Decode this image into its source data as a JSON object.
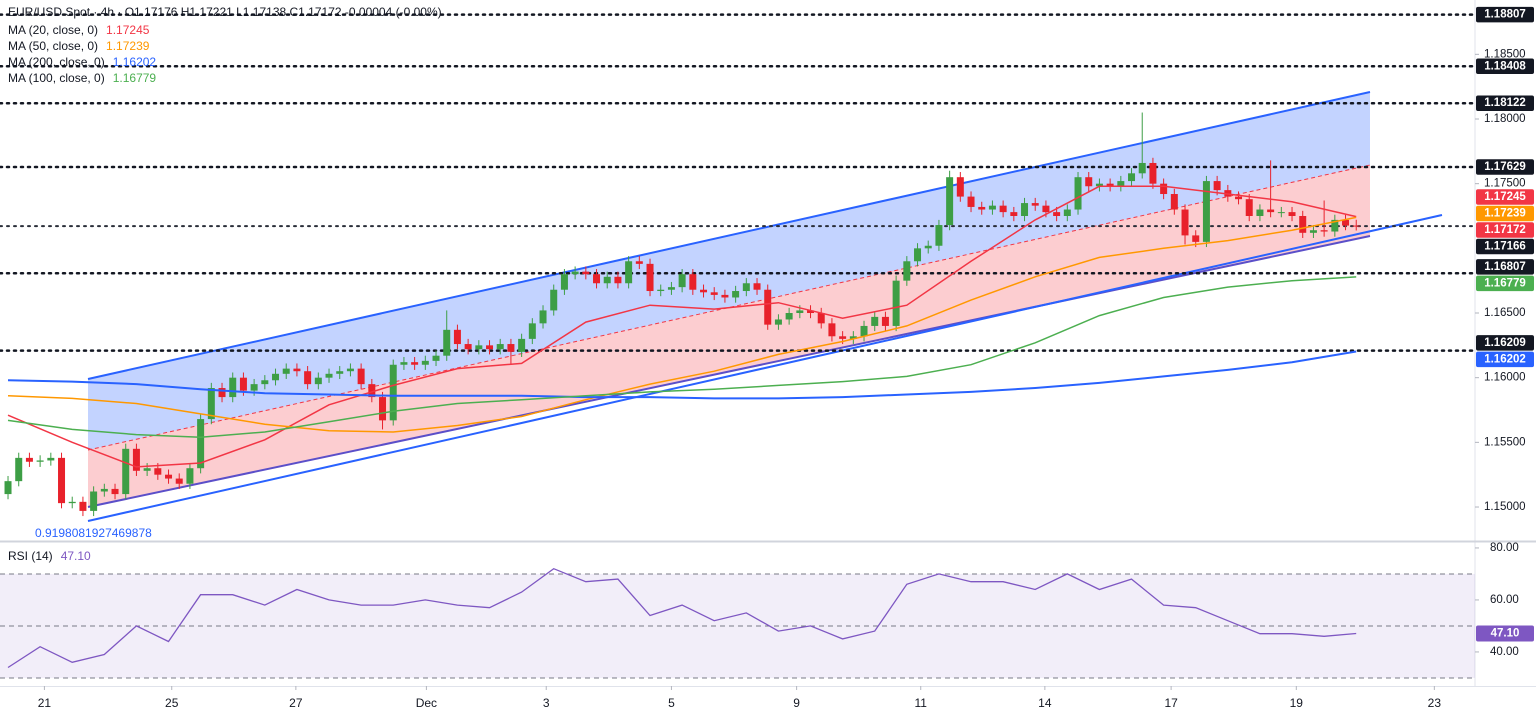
{
  "chart_data": {
    "type": "candlestick",
    "header": "EUR/USD Spot · 4h · O1.17176 H1.17221 L1.17138 C1.17172 -0.00004 (-0.00%)",
    "annotation": "0.9198081927469878",
    "xlim": [
      -0.75,
      137.1
    ],
    "xticks": [
      {
        "value": 3.4,
        "label": "21"
      },
      {
        "value": 15.3,
        "label": "25"
      },
      {
        "value": 26.9,
        "label": "27"
      },
      {
        "value": 39.1,
        "label": "Dec"
      },
      {
        "value": 50.3,
        "label": "3"
      },
      {
        "value": 62.0,
        "label": "5"
      },
      {
        "value": 73.7,
        "label": "9"
      },
      {
        "value": 85.3,
        "label": "11"
      },
      {
        "value": 96.9,
        "label": "14"
      },
      {
        "value": 108.7,
        "label": "17"
      },
      {
        "value": 120.4,
        "label": "19"
      },
      {
        "value": 133.3,
        "label": "23"
      }
    ],
    "ylim": [
      1.14745,
      1.1892
    ],
    "yticks": [
      {
        "value": 1.15,
        "label": "1.15000"
      },
      {
        "value": 1.155,
        "label": "1.15500"
      },
      {
        "value": 1.16,
        "label": "1.16000"
      },
      {
        "value": 1.165,
        "label": "1.16500"
      },
      {
        "value": 1.175,
        "label": "1.17500"
      },
      {
        "value": 1.18,
        "label": "1.18000"
      },
      {
        "value": 1.185,
        "label": "1.18500"
      }
    ],
    "up_color": "#3d9e45",
    "down_color": "#e8212b",
    "candles": {
      "open": [
        1.151,
        1.152,
        1.1538,
        1.1535,
        1.1536,
        1.1538,
        1.1503,
        1.1504,
        1.1497,
        1.1512,
        1.1514,
        1.151,
        1.1545,
        1.1528,
        1.153,
        1.1525,
        1.1522,
        1.1518,
        1.153,
        1.1568,
        1.1592,
        1.1585,
        1.16,
        1.159,
        1.1595,
        1.1598,
        1.1603,
        1.1607,
        1.1605,
        1.1595,
        1.16,
        1.1603,
        1.1605,
        1.1607,
        1.1595,
        1.1585,
        1.1567,
        1.161,
        1.1612,
        1.161,
        1.1613,
        1.1617,
        1.1637,
        1.1626,
        1.1622,
        1.1625,
        1.1622,
        1.1626,
        1.162,
        1.163,
        1.1642,
        1.1652,
        1.1668,
        1.168,
        1.1682,
        1.168,
        1.1673,
        1.1678,
        1.1673,
        1.169,
        1.1688,
        1.1667,
        1.1668,
        1.167,
        1.168,
        1.1668,
        1.1666,
        1.1664,
        1.1662,
        1.1667,
        1.1673,
        1.1668,
        1.1641,
        1.1645,
        1.165,
        1.1652,
        1.165,
        1.1642,
        1.1632,
        1.163,
        1.1632,
        1.164,
        1.1647,
        1.164,
        1.1675,
        1.169,
        1.17,
        1.1702,
        1.1718,
        1.1755,
        1.174,
        1.1732,
        1.173,
        1.1733,
        1.1728,
        1.1725,
        1.1735,
        1.1733,
        1.1728,
        1.1725,
        1.173,
        1.1755,
        1.1748,
        1.175,
        1.1748,
        1.1752,
        1.1758,
        1.1766,
        1.175,
        1.1742,
        1.173,
        1.171,
        1.1705,
        1.1752,
        1.1745,
        1.174,
        1.1738,
        1.1725,
        1.173,
        1.1728,
        1.1728,
        1.1725,
        1.1712,
        1.1714,
        1.1713,
        1.1722,
        1.17176
      ],
      "high": [
        1.1524,
        1.1542,
        1.1542,
        1.154,
        1.1542,
        1.1542,
        1.1508,
        1.1508,
        1.1516,
        1.1518,
        1.1518,
        1.1549,
        1.1549,
        1.1534,
        1.1534,
        1.1529,
        1.1526,
        1.1534,
        1.1572,
        1.1596,
        1.1596,
        1.1604,
        1.1604,
        1.1599,
        1.1602,
        1.1607,
        1.1611,
        1.1611,
        1.1609,
        1.1604,
        1.1607,
        1.1609,
        1.1611,
        1.1611,
        1.1599,
        1.1589,
        1.1614,
        1.1616,
        1.1616,
        1.1617,
        1.1621,
        1.1652,
        1.1641,
        1.163,
        1.1629,
        1.1629,
        1.163,
        1.163,
        1.1634,
        1.1646,
        1.1656,
        1.1672,
        1.1684,
        1.1686,
        1.1686,
        1.1684,
        1.1682,
        1.1682,
        1.1694,
        1.1694,
        1.1692,
        1.1672,
        1.1674,
        1.1684,
        1.1684,
        1.1672,
        1.167,
        1.1668,
        1.1671,
        1.1677,
        1.1677,
        1.1672,
        1.1649,
        1.1654,
        1.1656,
        1.1656,
        1.1654,
        1.1646,
        1.1636,
        1.1636,
        1.1644,
        1.1651,
        1.1651,
        1.1679,
        1.1694,
        1.1704,
        1.1706,
        1.1722,
        1.176,
        1.1759,
        1.1744,
        1.1736,
        1.1737,
        1.1737,
        1.1732,
        1.1739,
        1.1739,
        1.1737,
        1.1732,
        1.1734,
        1.1759,
        1.1759,
        1.1754,
        1.1754,
        1.1756,
        1.1762,
        1.1805,
        1.177,
        1.1754,
        1.1746,
        1.1734,
        1.1714,
        1.1756,
        1.1756,
        1.1749,
        1.1744,
        1.1742,
        1.1734,
        1.1768,
        1.1732,
        1.1732,
        1.1729,
        1.1718,
        1.1737,
        1.1726,
        1.1726,
        1.17221
      ],
      "low": [
        1.1506,
        1.1516,
        1.1531,
        1.1531,
        1.1532,
        1.1499,
        1.1499,
        1.1493,
        1.1493,
        1.1508,
        1.1506,
        1.1506,
        1.1524,
        1.1524,
        1.1521,
        1.1518,
        1.1514,
        1.1514,
        1.1526,
        1.1564,
        1.1581,
        1.1581,
        1.1586,
        1.1586,
        1.1591,
        1.1594,
        1.1599,
        1.1601,
        1.1591,
        1.1591,
        1.1596,
        1.1599,
        1.1601,
        1.1591,
        1.1581,
        1.156,
        1.1563,
        1.1606,
        1.1606,
        1.1606,
        1.1609,
        1.1613,
        1.1622,
        1.1618,
        1.1618,
        1.1618,
        1.1618,
        1.161,
        1.1616,
        1.1626,
        1.1638,
        1.1648,
        1.1664,
        1.1676,
        1.1676,
        1.1669,
        1.1669,
        1.1669,
        1.1669,
        1.1684,
        1.1663,
        1.1663,
        1.1664,
        1.1666,
        1.1664,
        1.1662,
        1.166,
        1.1658,
        1.1658,
        1.1663,
        1.1664,
        1.1637,
        1.1637,
        1.1641,
        1.1646,
        1.1646,
        1.1638,
        1.1628,
        1.1626,
        1.1626,
        1.1628,
        1.1636,
        1.1636,
        1.1636,
        1.1671,
        1.1686,
        1.1696,
        1.1698,
        1.1714,
        1.1736,
        1.1728,
        1.1726,
        1.1726,
        1.1724,
        1.1721,
        1.1721,
        1.1729,
        1.1724,
        1.1721,
        1.1721,
        1.1726,
        1.1744,
        1.1744,
        1.1744,
        1.1744,
        1.1748,
        1.1754,
        1.1746,
        1.1738,
        1.1726,
        1.1703,
        1.1701,
        1.1701,
        1.1741,
        1.1736,
        1.1734,
        1.1721,
        1.1721,
        1.1724,
        1.1724,
        1.1721,
        1.1708,
        1.1708,
        1.1709,
        1.1709,
        1.1714,
        1.17138
      ],
      "close": [
        1.152,
        1.1538,
        1.1535,
        1.1536,
        1.1538,
        1.1503,
        1.1504,
        1.1497,
        1.1512,
        1.1514,
        1.151,
        1.1545,
        1.1528,
        1.153,
        1.1525,
        1.1522,
        1.1518,
        1.153,
        1.1568,
        1.1592,
        1.1585,
        1.16,
        1.159,
        1.1595,
        1.1598,
        1.1603,
        1.1607,
        1.1605,
        1.1595,
        1.16,
        1.1603,
        1.1605,
        1.1607,
        1.1595,
        1.1585,
        1.1567,
        1.161,
        1.1612,
        1.161,
        1.1613,
        1.1617,
        1.1637,
        1.1626,
        1.1622,
        1.1625,
        1.1622,
        1.1626,
        1.162,
        1.163,
        1.1642,
        1.1652,
        1.1668,
        1.168,
        1.1682,
        1.168,
        1.1673,
        1.1678,
        1.1673,
        1.169,
        1.1688,
        1.1667,
        1.1668,
        1.167,
        1.168,
        1.1668,
        1.1666,
        1.1664,
        1.1662,
        1.1667,
        1.1673,
        1.1668,
        1.1641,
        1.1645,
        1.165,
        1.1652,
        1.165,
        1.1642,
        1.1632,
        1.163,
        1.1632,
        1.164,
        1.1647,
        1.164,
        1.1675,
        1.169,
        1.17,
        1.1702,
        1.1718,
        1.1755,
        1.174,
        1.1732,
        1.173,
        1.1733,
        1.1728,
        1.1725,
        1.1735,
        1.1733,
        1.1728,
        1.1725,
        1.173,
        1.1755,
        1.1748,
        1.175,
        1.1748,
        1.1752,
        1.1758,
        1.1766,
        1.175,
        1.1742,
        1.173,
        1.171,
        1.1705,
        1.1752,
        1.1745,
        1.174,
        1.1738,
        1.1725,
        1.173,
        1.1728,
        1.1728,
        1.1725,
        1.1712,
        1.1714,
        1.1713,
        1.1722,
        1.17176,
        1.17172
      ]
    },
    "moving_averages": {
      "x": [
        0,
        6,
        12,
        18,
        24,
        30,
        36,
        42,
        48,
        54,
        60,
        66,
        72,
        78,
        84,
        90,
        96,
        102,
        108,
        114,
        120,
        126
      ],
      "series": [
        {
          "name": "MA (20, close, 0)",
          "color": "#f23645",
          "last": 1.17245,
          "values": [
            1.1571,
            1.155,
            1.1531,
            1.1534,
            1.1552,
            1.1579,
            1.1594,
            1.1607,
            1.1611,
            1.1643,
            1.1656,
            1.1653,
            1.1658,
            1.1646,
            1.1656,
            1.169,
            1.1722,
            1.1748,
            1.1748,
            1.1742,
            1.1736,
            1.17245
          ]
        },
        {
          "name": "MA (50, close, 0)",
          "color": "#ff9800",
          "last": 1.17239,
          "values": [
            1.1586,
            1.1584,
            1.158,
            1.1572,
            1.1564,
            1.1559,
            1.1558,
            1.1563,
            1.157,
            1.1583,
            1.1595,
            1.1605,
            1.1618,
            1.1628,
            1.164,
            1.166,
            1.1678,
            1.1693,
            1.17,
            1.1706,
            1.1714,
            1.17239
          ]
        },
        {
          "name": "MA (200, close, 0)",
          "color": "#2962ff",
          "last": 1.16202,
          "values": [
            1.1598,
            1.1597,
            1.1595,
            1.1591,
            1.1588,
            1.1587,
            1.1586,
            1.1586,
            1.1586,
            1.1585,
            1.1585,
            1.1584,
            1.1584,
            1.1585,
            1.1587,
            1.1589,
            1.1592,
            1.1596,
            1.1601,
            1.1606,
            1.1612,
            1.16202
          ]
        },
        {
          "name": "MA (100, close, 0)",
          "color": "#4caf50",
          "last": 1.16779,
          "values": [
            1.1567,
            1.156,
            1.1556,
            1.1554,
            1.1558,
            1.1566,
            1.1574,
            1.158,
            1.1583,
            1.1586,
            1.1589,
            1.1591,
            1.1594,
            1.1597,
            1.1601,
            1.161,
            1.1627,
            1.1648,
            1.1662,
            1.167,
            1.1675,
            1.16779
          ]
        }
      ]
    },
    "levels": [
      1.18807,
      1.18408,
      1.18122,
      1.17629,
      1.16807,
      1.16209
    ],
    "level_color": "#131722",
    "current_price": 1.17172,
    "current_price_color": "#f23645",
    "channel_price": 1.17166,
    "channel_price_color": "#131722",
    "rsi": {
      "title": "RSI (14)",
      "last_label": "47.10",
      "color": "#7e57c2",
      "x": [
        0,
        3,
        6,
        9,
        12,
        15,
        18,
        21,
        24,
        27,
        30,
        33,
        36,
        39,
        42,
        45,
        48,
        51,
        54,
        57,
        60,
        63,
        66,
        69,
        72,
        75,
        78,
        81,
        84,
        87,
        90,
        93,
        96,
        99,
        102,
        105,
        108,
        111,
        114,
        117,
        120,
        123,
        126
      ],
      "values": [
        34,
        42,
        36,
        39,
        50,
        44,
        62,
        62,
        58,
        64,
        60,
        58,
        58,
        60,
        58,
        57,
        63,
        72,
        67,
        68,
        54,
        58,
        52,
        55,
        48,
        50,
        45,
        48,
        66,
        70,
        67,
        67,
        64,
        70,
        64,
        68,
        58,
        57,
        52,
        47,
        47,
        46,
        47.1
      ],
      "ylim": [
        26.9,
        81.9
      ],
      "yticks": [
        {
          "value": 80,
          "label": "80.00"
        },
        {
          "value": 60,
          "label": "60.00"
        },
        {
          "value": 40,
          "label": "40.00"
        }
      ],
      "bands": [
        70,
        50,
        30
      ]
    }
  }
}
